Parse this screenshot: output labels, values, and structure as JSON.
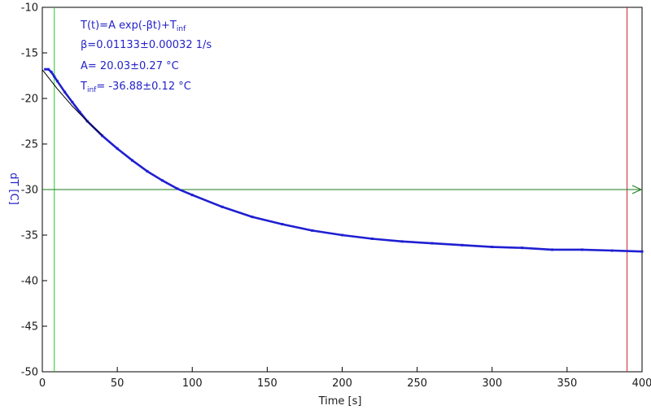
{
  "chart_data": {
    "type": "scatter",
    "xlabel": "Time [s]",
    "ylabel": "dT [C]",
    "xlim": [
      0,
      400
    ],
    "ylim": [
      -50,
      -10
    ],
    "x_ticks": [
      0,
      50,
      100,
      150,
      200,
      250,
      300,
      350,
      400
    ],
    "y_ticks": [
      -10,
      -15,
      -20,
      -25,
      -30,
      -35,
      -40,
      -45,
      -50
    ],
    "grid": false,
    "series": [
      {
        "x": [
          2,
          4,
          6,
          8,
          10,
          15,
          20,
          25,
          30,
          40,
          50,
          60,
          70,
          80,
          90,
          100,
          120,
          140,
          160,
          180,
          200,
          220,
          240,
          260,
          280,
          300,
          320,
          340,
          360,
          380,
          400
        ],
        "y": [
          -16.8,
          -16.8,
          -17.1,
          -17.6,
          -18.1,
          -19.3,
          -20.4,
          -21.5,
          -22.5,
          -24.1,
          -25.5,
          -26.8,
          -28.0,
          -29.0,
          -29.9,
          -30.6,
          -31.9,
          -33.0,
          -33.8,
          -34.5,
          -35.0,
          -35.4,
          -35.7,
          -35.9,
          -36.1,
          -36.3,
          -36.4,
          -36.6,
          -36.6,
          -36.7,
          -36.8
        ],
        "color": "#1f1fd2"
      }
    ],
    "fit": {
      "x": [
        0,
        10,
        20,
        30,
        40
      ],
      "y": [
        -16.85,
        -18.95,
        -20.84,
        -22.53,
        -24.04
      ],
      "color": "#000000"
    },
    "reference_lines": {
      "vertical_green_x": 8,
      "vertical_red_x": 390,
      "horizontal_green_y": -30,
      "green_color": "#22cc22",
      "red_color": "#cc2222",
      "hline_color": "#1b7a1b"
    },
    "annotations": {
      "line1": "T(t)=A exp(-βt)+T",
      "line1_sub": "inf",
      "line2": "β=0.01133±0.00032 1/s",
      "line3": "A= 20.03±0.27 °C",
      "line4_pre": "T",
      "line4_sub": "inf",
      "line4_post": "= -36.88±0.12 °C"
    }
  }
}
